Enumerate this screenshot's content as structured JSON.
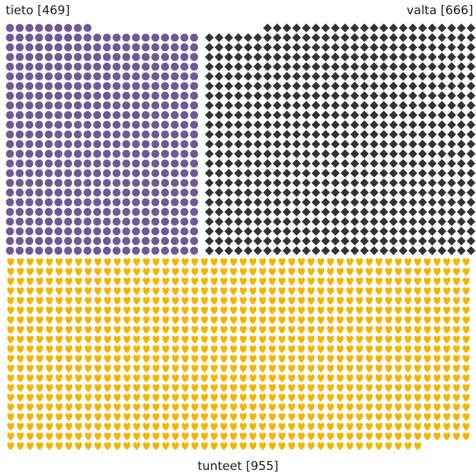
{
  "chart_data": {
    "type": "unit-chart",
    "title": "",
    "groups": [
      {
        "name": "tieto",
        "label": "tieto [469]",
        "value": 469,
        "shape": "circle",
        "color": "#6e5a94"
      },
      {
        "name": "valta",
        "label": "valta [666]",
        "value": 666,
        "shape": "diamond",
        "color": "#333333"
      },
      {
        "name": "tunteet",
        "label": "tunteet [955]",
        "value": 955,
        "shape": "heart",
        "color": "#f5b400"
      }
    ]
  }
}
